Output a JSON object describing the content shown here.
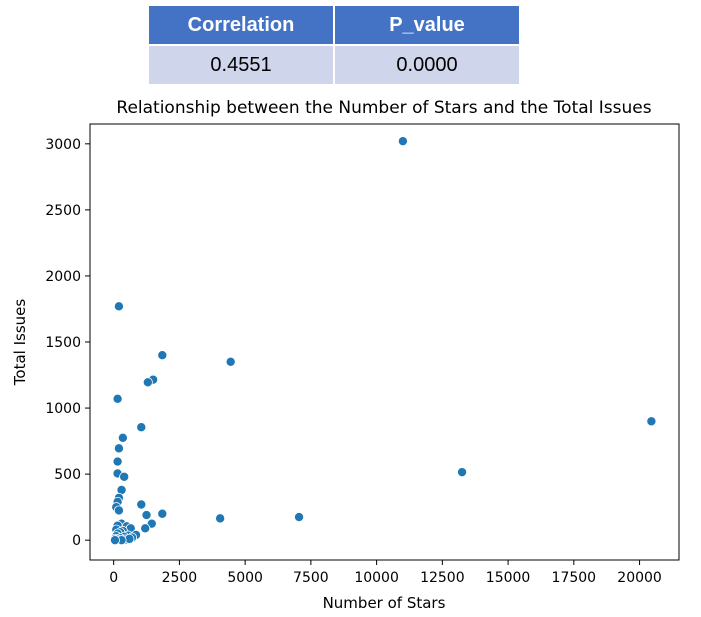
{
  "stats_table": {
    "headers": [
      "Correlation",
      "P_value"
    ],
    "row": [
      "0.4551",
      "0.0000"
    ],
    "header_color": "#4472c4",
    "row_color": "#cfd5ea"
  },
  "chart_data": {
    "type": "scatter",
    "title": "Relationship between the Number of Stars and the Total Issues",
    "xlabel": "Number of Stars",
    "ylabel": "Total Issues",
    "xlim": [
      -900,
      21500
    ],
    "ylim": [
      -150,
      3150
    ],
    "xticks": [
      0,
      2500,
      5000,
      7500,
      10000,
      12500,
      15000,
      17500,
      20000
    ],
    "yticks": [
      0,
      500,
      1000,
      1500,
      2000,
      2500,
      3000
    ],
    "point_color": "#1f77b4",
    "grid": false,
    "legend": "none",
    "points": [
      {
        "x": 11000,
        "y": 3020
      },
      {
        "x": 200,
        "y": 1770
      },
      {
        "x": 1850,
        "y": 1400
      },
      {
        "x": 4450,
        "y": 1350
      },
      {
        "x": 1500,
        "y": 1215
      },
      {
        "x": 1300,
        "y": 1195
      },
      {
        "x": 150,
        "y": 1070
      },
      {
        "x": 1050,
        "y": 855
      },
      {
        "x": 20450,
        "y": 900
      },
      {
        "x": 350,
        "y": 775
      },
      {
        "x": 200,
        "y": 695
      },
      {
        "x": 150,
        "y": 595
      },
      {
        "x": 13250,
        "y": 515
      },
      {
        "x": 150,
        "y": 505
      },
      {
        "x": 400,
        "y": 480
      },
      {
        "x": 300,
        "y": 380
      },
      {
        "x": 200,
        "y": 320
      },
      {
        "x": 150,
        "y": 290
      },
      {
        "x": 1050,
        "y": 270
      },
      {
        "x": 100,
        "y": 250
      },
      {
        "x": 200,
        "y": 225
      },
      {
        "x": 1850,
        "y": 200
      },
      {
        "x": 1250,
        "y": 190
      },
      {
        "x": 7050,
        "y": 175
      },
      {
        "x": 4050,
        "y": 165
      },
      {
        "x": 1450,
        "y": 125
      },
      {
        "x": 300,
        "y": 125
      },
      {
        "x": 150,
        "y": 110
      },
      {
        "x": 500,
        "y": 105
      },
      {
        "x": 1200,
        "y": 90
      },
      {
        "x": 650,
        "y": 90
      },
      {
        "x": 100,
        "y": 80
      },
      {
        "x": 350,
        "y": 70
      },
      {
        "x": 250,
        "y": 60
      },
      {
        "x": 150,
        "y": 50
      },
      {
        "x": 850,
        "y": 40
      },
      {
        "x": 550,
        "y": 35
      },
      {
        "x": 100,
        "y": 30
      },
      {
        "x": 400,
        "y": 25
      },
      {
        "x": 700,
        "y": 20
      },
      {
        "x": 250,
        "y": 15
      },
      {
        "x": 50,
        "y": 10
      },
      {
        "x": 150,
        "y": 5
      },
      {
        "x": 450,
        "y": 5
      },
      {
        "x": 600,
        "y": 10
      },
      {
        "x": 300,
        "y": 0
      },
      {
        "x": 50,
        "y": 0
      }
    ]
  }
}
